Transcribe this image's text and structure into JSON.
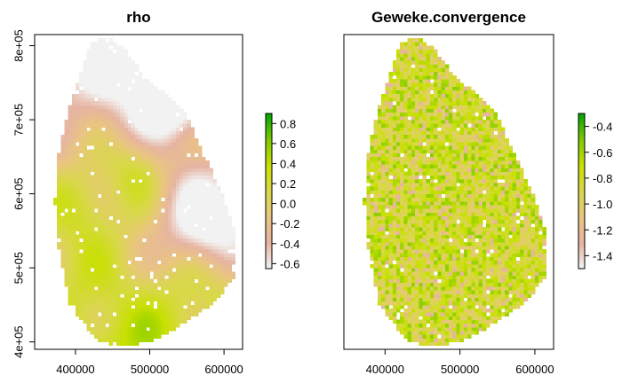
{
  "chart_data": [
    {
      "type": "heatmap",
      "title": "rho",
      "xlabel": "",
      "ylabel": "",
      "xlim": [
        345000,
        625000
      ],
      "ylim": [
        390000,
        815000
      ],
      "x_ticks": [
        400000,
        500000,
        600000
      ],
      "x_tick_labels": [
        "400000",
        "500000",
        "600000"
      ],
      "y_ticks": [
        400000,
        500000,
        600000,
        700000,
        800000
      ],
      "y_tick_labels": [
        "4e+05",
        "5e+05",
        "6e+05",
        "7e+05",
        "8e+05"
      ],
      "legend": {
        "placement": "right",
        "min": -0.65,
        "max": 0.9,
        "ticks": [
          -0.6,
          -0.4,
          -0.2,
          0.0,
          0.2,
          0.4,
          0.6,
          0.8
        ],
        "tick_labels": [
          "-0.6",
          "-0.4",
          "-0.2",
          "0.0",
          "0.2",
          "0.4",
          "0.6",
          "0.8"
        ]
      },
      "colors": [
        "#f2f2f2",
        "#e6b4a2",
        "#e9c580",
        "#d8d848",
        "#c8e000",
        "#7dca00",
        "#00a600"
      ],
      "pattern": "smooth"
    },
    {
      "type": "heatmap",
      "title": "Geweke.convergence",
      "xlabel": "",
      "ylabel": "",
      "xlim": [
        345000,
        625000
      ],
      "ylim": [
        390000,
        815000
      ],
      "x_ticks": [
        400000,
        500000,
        600000
      ],
      "x_tick_labels": [
        "400000",
        "500000",
        "600000"
      ],
      "y_ticks": [],
      "y_tick_labels": [],
      "legend": {
        "placement": "right",
        "min": -1.5,
        "max": -0.3,
        "ticks": [
          -1.4,
          -1.2,
          -1.0,
          -0.8,
          -0.6,
          -0.4
        ],
        "tick_labels": [
          "-1.4",
          "-1.2",
          "-1.0",
          "-0.8",
          "-0.6",
          "-0.4"
        ]
      },
      "colors": [
        "#f2f2f2",
        "#e6b4a2",
        "#e9c580",
        "#d8d848",
        "#c8e000",
        "#7dca00",
        "#00a600"
      ],
      "pattern": "noisy"
    }
  ]
}
